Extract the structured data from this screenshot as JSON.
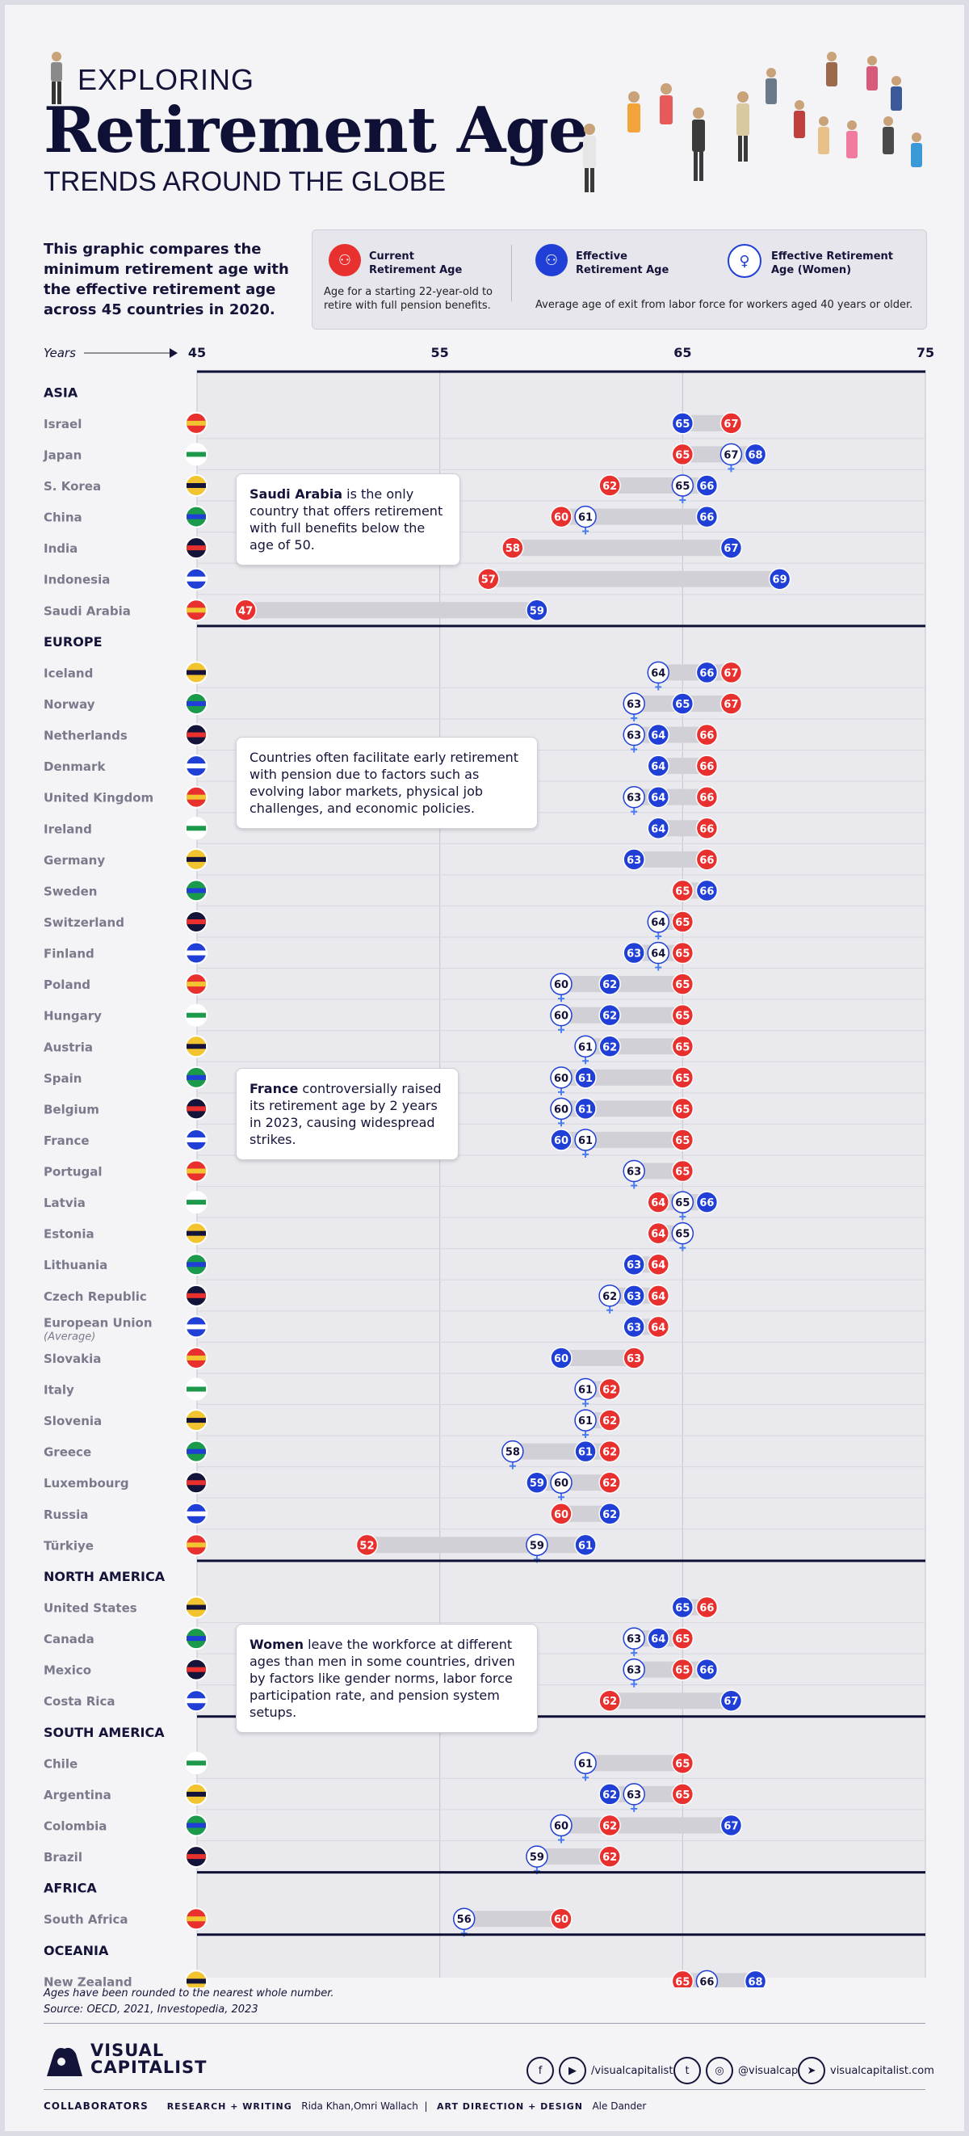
{
  "header": {
    "kicker": "EXPLORING",
    "title": "Retirement Age",
    "subtitle": "TRENDS AROUND THE GLOBE"
  },
  "intro": "This graphic compares the minimum retirement age with the effective retirement age across 45 countries in 2020.",
  "legend": {
    "current_label": "Current Retirement Age",
    "current_desc": "Age for a starting 22-year-old to retire with full pension benefits.",
    "effective_label": "Effective Retirement Age",
    "women_label": "Effective Retirement Age (Women)",
    "effective_desc": "Average age of exit from labor force for workers aged 40 years or older."
  },
  "colors": {
    "current": "#e8302f",
    "effective": "#1f3fd6",
    "women": "#ffffff",
    "bar": "#d0d0d6",
    "plot_bg": "#e9e9ee"
  },
  "chart_data": {
    "type": "range-dot",
    "axis_label": "Years",
    "xlim": [
      45,
      75
    ],
    "ticks": [
      "45",
      "55",
      "65",
      "75"
    ],
    "regions": [
      {
        "name": "ASIA",
        "countries": [
          {
            "name": "Israel",
            "flag": "israel-flag-icon",
            "current": 67,
            "effective": 65,
            "women": null
          },
          {
            "name": "Japan",
            "flag": "japan-flag-icon",
            "current": 65,
            "effective": 68,
            "women": 67
          },
          {
            "name": "S. Korea",
            "flag": "south-korea-flag-icon",
            "current": 62,
            "effective": 66,
            "women": 65
          },
          {
            "name": "China",
            "flag": "china-flag-icon",
            "current": 60,
            "effective": 66,
            "women": 61
          },
          {
            "name": "India",
            "flag": "india-flag-icon",
            "current": 58,
            "effective": 67,
            "women": null
          },
          {
            "name": "Indonesia",
            "flag": "indonesia-flag-icon",
            "current": 57,
            "effective": 69,
            "women": null
          },
          {
            "name": "Saudi Arabia",
            "flag": "saudi-arabia-flag-icon",
            "current": 47,
            "effective": 59,
            "women": null
          }
        ]
      },
      {
        "name": "EUROPE",
        "countries": [
          {
            "name": "Iceland",
            "flag": "iceland-flag-icon",
            "current": 67,
            "effective": 66,
            "women": 64
          },
          {
            "name": "Norway",
            "flag": "norway-flag-icon",
            "current": 67,
            "effective": 65,
            "women": 63
          },
          {
            "name": "Netherlands",
            "flag": "netherlands-flag-icon",
            "current": 66,
            "effective": 64,
            "women": 63
          },
          {
            "name": "Denmark",
            "flag": "denmark-flag-icon",
            "current": 66,
            "effective": 64,
            "women": null
          },
          {
            "name": "United Kingdom",
            "flag": "uk-flag-icon",
            "current": 66,
            "effective": 64,
            "women": 63
          },
          {
            "name": "Ireland",
            "flag": "ireland-flag-icon",
            "current": 66,
            "effective": 64,
            "women": null
          },
          {
            "name": "Germany",
            "flag": "germany-flag-icon",
            "current": 66,
            "effective": 63,
            "women": null
          },
          {
            "name": "Sweden",
            "flag": "sweden-flag-icon",
            "current": 65,
            "effective": 66,
            "women": null
          },
          {
            "name": "Switzerland",
            "flag": "switzerland-flag-icon",
            "current": 65,
            "effective": null,
            "women": 64
          },
          {
            "name": "Finland",
            "flag": "finland-flag-icon",
            "current": 65,
            "effective": 63,
            "women": 64
          },
          {
            "name": "Poland",
            "flag": "poland-flag-icon",
            "current": 65,
            "effective": 62,
            "women": 60
          },
          {
            "name": "Hungary",
            "flag": "hungary-flag-icon",
            "current": 65,
            "effective": 62,
            "women": 60
          },
          {
            "name": "Austria",
            "flag": "austria-flag-icon",
            "current": 65,
            "effective": 62,
            "women": 61
          },
          {
            "name": "Spain",
            "flag": "spain-flag-icon",
            "current": 65,
            "effective": 61,
            "women": 60
          },
          {
            "name": "Belgium",
            "flag": "belgium-flag-icon",
            "current": 65,
            "effective": 61,
            "women": 60
          },
          {
            "name": "France",
            "flag": "france-flag-icon",
            "current": 65,
            "effective": 60,
            "women": 61
          },
          {
            "name": "Portugal",
            "flag": "portugal-flag-icon",
            "current": 65,
            "effective": null,
            "women": 63
          },
          {
            "name": "Latvia",
            "flag": "latvia-flag-icon",
            "current": 64,
            "effective": 66,
            "women": 65
          },
          {
            "name": "Estonia",
            "flag": "estonia-flag-icon",
            "current": 64,
            "effective": null,
            "women": 65
          },
          {
            "name": "Lithuania",
            "flag": "lithuania-flag-icon",
            "current": 64,
            "effective": 63,
            "women": null
          },
          {
            "name": "Czech Republic",
            "flag": "czech-flag-icon",
            "current": 64,
            "effective": 63,
            "women": 62
          },
          {
            "name": "European Union",
            "sub": "(Average)",
            "flag": "eu-flag-icon",
            "current": 64,
            "effective": 63,
            "women": null
          },
          {
            "name": "Slovakia",
            "flag": "slovakia-flag-icon",
            "current": 63,
            "effective": 60,
            "women": null
          },
          {
            "name": "Italy",
            "flag": "italy-flag-icon",
            "current": 62,
            "effective": null,
            "women": 61
          },
          {
            "name": "Slovenia",
            "flag": "slovenia-flag-icon",
            "current": 62,
            "effective": null,
            "women": 61
          },
          {
            "name": "Greece",
            "flag": "greece-flag-icon",
            "current": 62,
            "effective": 61,
            "women": 58
          },
          {
            "name": "Luxembourg",
            "flag": "luxembourg-flag-icon",
            "current": 62,
            "effective": 59,
            "women": 60
          },
          {
            "name": "Russia",
            "flag": "russia-flag-icon",
            "current": 60,
            "effective": 62,
            "women": null
          },
          {
            "name": "Türkiye",
            "flag": "turkiye-flag-icon",
            "current": 52,
            "effective": 61,
            "women": 59
          }
        ]
      },
      {
        "name": "NORTH AMERICA",
        "countries": [
          {
            "name": "United States",
            "flag": "us-flag-icon",
            "current": 66,
            "effective": 65,
            "women": null
          },
          {
            "name": "Canada",
            "flag": "canada-flag-icon",
            "current": 65,
            "effective": 64,
            "women": 63
          },
          {
            "name": "Mexico",
            "flag": "mexico-flag-icon",
            "current": 65,
            "effective": 66,
            "women": 63
          },
          {
            "name": "Costa Rica",
            "flag": "costa-rica-flag-icon",
            "current": 62,
            "effective": 67,
            "women": null
          }
        ]
      },
      {
        "name": "SOUTH AMERICA",
        "countries": [
          {
            "name": "Chile",
            "flag": "chile-flag-icon",
            "current": 65,
            "effective": null,
            "women": 61
          },
          {
            "name": "Argentina",
            "flag": "argentina-flag-icon",
            "current": 65,
            "effective": 62,
            "women": 63
          },
          {
            "name": "Colombia",
            "flag": "colombia-flag-icon",
            "current": 62,
            "effective": 67,
            "women": 60
          },
          {
            "name": "Brazil",
            "flag": "brazil-flag-icon",
            "current": 62,
            "effective": null,
            "women": 59
          }
        ]
      },
      {
        "name": "AFRICA",
        "countries": [
          {
            "name": "South Africa",
            "flag": "south-africa-flag-icon",
            "current": 60,
            "effective": null,
            "women": 56
          }
        ]
      },
      {
        "name": "OCEANIA",
        "countries": [
          {
            "name": "New Zealand",
            "flag": "new-zealand-flag-icon",
            "current": 65,
            "effective": 68,
            "women": 66
          }
        ]
      }
    ],
    "annotations": [
      {
        "bold": "Saudi Arabia",
        "text": " is the only country that offers retirement with full benefits below the age of 50."
      },
      {
        "bold": "",
        "text": "Countries often facilitate early retirement with pension due to factors such as evolving labor markets, physical job challenges, and economic policies."
      },
      {
        "bold": "France",
        "text": " controversially raised its retirement age by 2 years in 2023, causing widespread strikes."
      },
      {
        "bold": "Women",
        "text": " leave the workforce at different ages than men in some countries, driven by factors like gender norms, labor force participation rate, and pension system setups."
      }
    ]
  },
  "footer": {
    "note": "Ages have been rounded to the nearest whole number.",
    "source": "Source: OECD, 2021, Investopedia, 2023",
    "brand_line1": "VISUAL",
    "brand_line2": "CAPITALIST",
    "handle1": "/visualcapitalist",
    "handle2": "@visualcap",
    "site": "visualcapitalist.com",
    "collab_label": "COLLABORATORS",
    "rw_label": "RESEARCH + WRITING",
    "rw_names": "Rida Khan,Omri Wallach",
    "ad_label": "ART DIRECTION + DESIGN",
    "ad_names": "Ale Dander"
  }
}
